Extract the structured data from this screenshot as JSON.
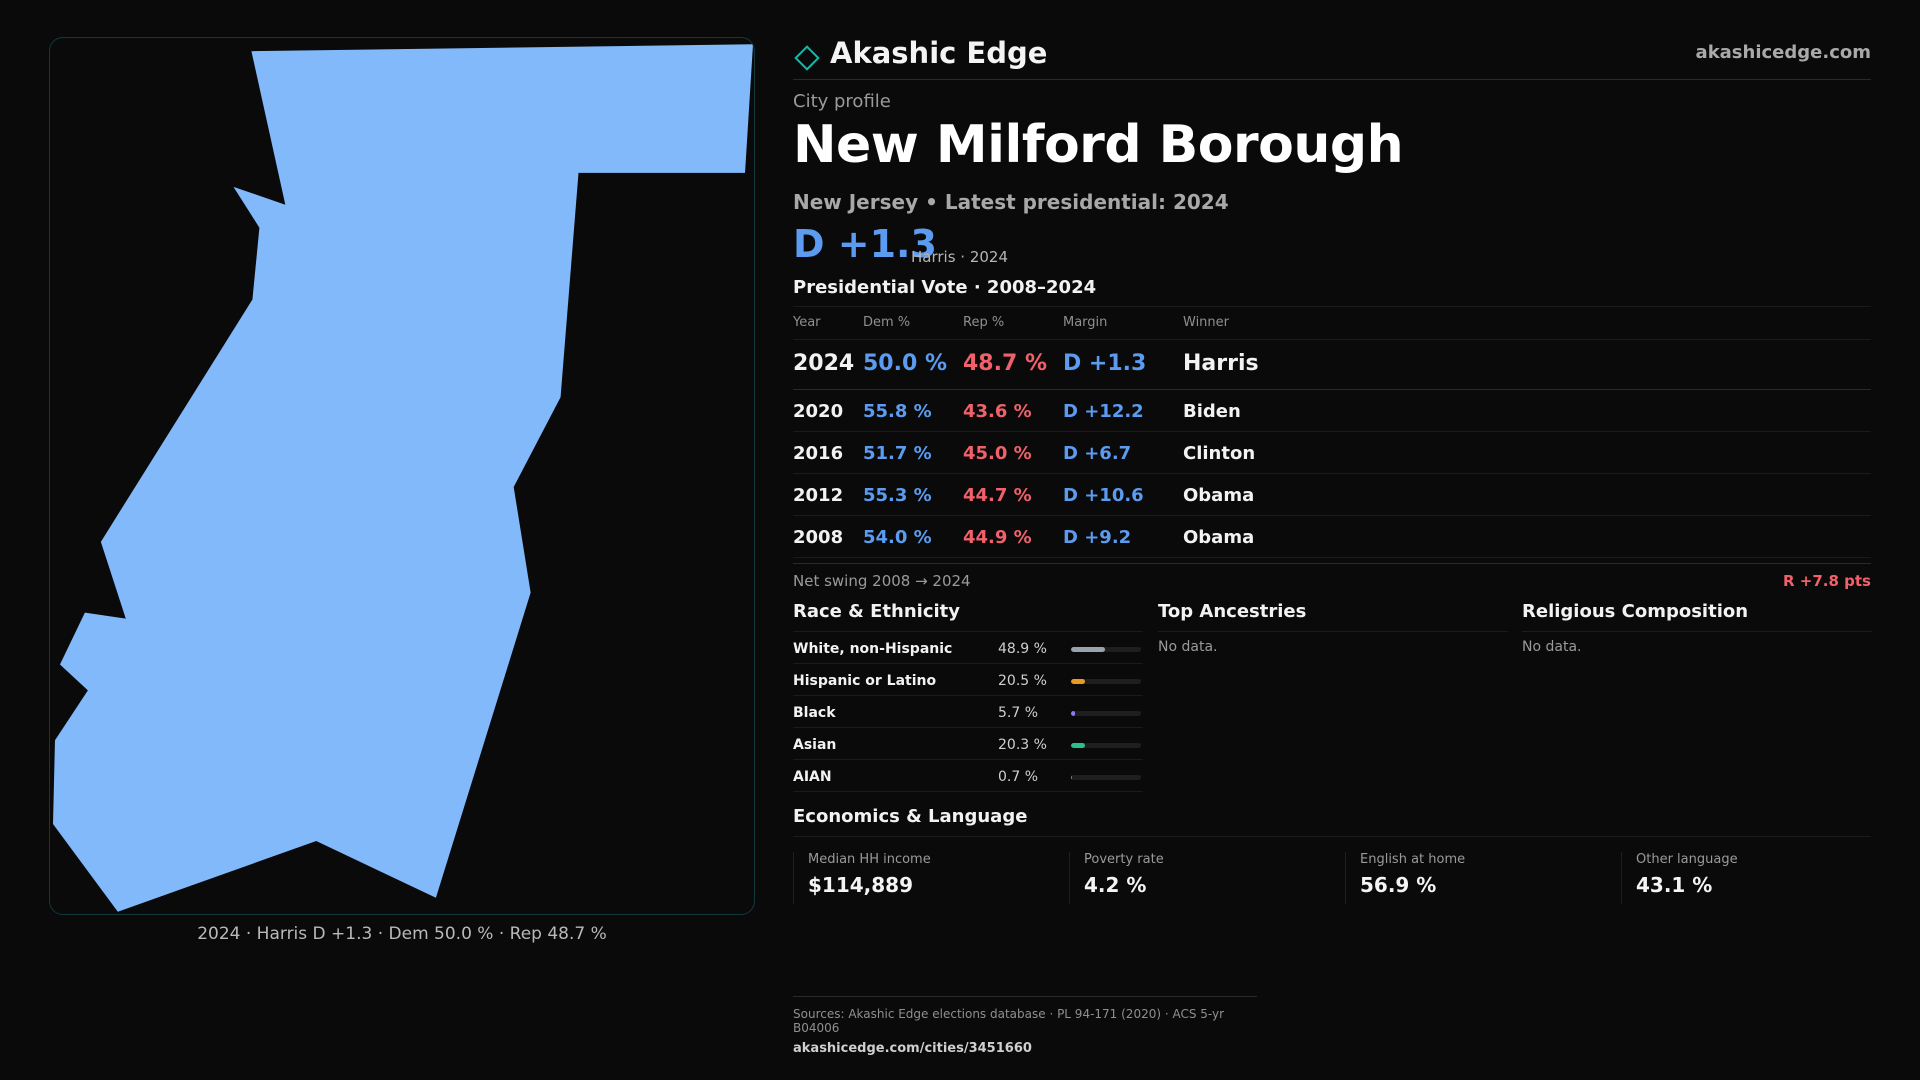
{
  "map": {
    "fill_color": "#82b9fb",
    "caption": "2024 · Harris D +1.3 · Dem 50.0 % · Rep 48.7 %"
  },
  "brand": {
    "name": "Akashic Edge",
    "url": "akashicedge.com",
    "icon": "diamond-icon",
    "accent": "#14b8a6"
  },
  "profile": {
    "kicker": "City profile",
    "city": "New Milford Borough",
    "subtitle": "New Jersey • Latest presidential: 2024",
    "margin": "D +1.3",
    "margin_note": "Harris · 2024"
  },
  "colors": {
    "dem": "#5b9cf0",
    "rep": "#f0616b"
  },
  "presidential": {
    "title": "Presidential Vote · 2008–2024",
    "headers": {
      "year": "Year",
      "dem": "Dem %",
      "rep": "Rep %",
      "margin": "Margin",
      "winner": "Winner"
    },
    "rows": [
      {
        "year": "2024",
        "dem": "50.0 %",
        "rep": "48.7 %",
        "margin": "D +1.3",
        "winner": "Harris"
      },
      {
        "year": "2020",
        "dem": "55.8 %",
        "rep": "43.6 %",
        "margin": "D +12.2",
        "winner": "Biden"
      },
      {
        "year": "2016",
        "dem": "51.7 %",
        "rep": "45.0 %",
        "margin": "D +6.7",
        "winner": "Clinton"
      },
      {
        "year": "2012",
        "dem": "55.3 %",
        "rep": "44.7 %",
        "margin": "D +10.6",
        "winner": "Obama"
      },
      {
        "year": "2008",
        "dem": "54.0 %",
        "rep": "44.9 %",
        "margin": "D +9.2",
        "winner": "Obama"
      }
    ],
    "swing_label": "Net swing 2008 → 2024",
    "swing_value": "R +7.8 pts"
  },
  "race": {
    "title": "Race & Ethnicity",
    "rows": [
      {
        "label": "White, non-Hispanic",
        "pct": "48.9 %",
        "value": 48.9,
        "color": "#9aa3ad"
      },
      {
        "label": "Hispanic or Latino",
        "pct": "20.5 %",
        "value": 20.5,
        "color": "#e89a23"
      },
      {
        "label": "Black",
        "pct": "5.7 %",
        "value": 5.7,
        "color": "#8b7cf6"
      },
      {
        "label": "Asian",
        "pct": "20.3 %",
        "value": 20.3,
        "color": "#2bbf8a"
      },
      {
        "label": "AIAN",
        "pct": "0.7 %",
        "value": 0.7,
        "color": "#c06a50"
      }
    ]
  },
  "ancestries": {
    "title": "Top Ancestries",
    "empty": "No data."
  },
  "religion": {
    "title": "Religious Composition",
    "empty": "No data."
  },
  "economics": {
    "title": "Economics & Language",
    "cards": [
      {
        "label": "Median HH income",
        "value": "$114,889"
      },
      {
        "label": "Poverty rate",
        "value": "4.2 %"
      },
      {
        "label": "English at home",
        "value": "56.9 %"
      },
      {
        "label": "Other language",
        "value": "43.1 %"
      }
    ]
  },
  "footer": {
    "sources": "Sources: Akashic Edge elections database · PL 94-171 (2020) · ACS 5-yr B04006",
    "link": "akashicedge.com/cities/3451660"
  }
}
